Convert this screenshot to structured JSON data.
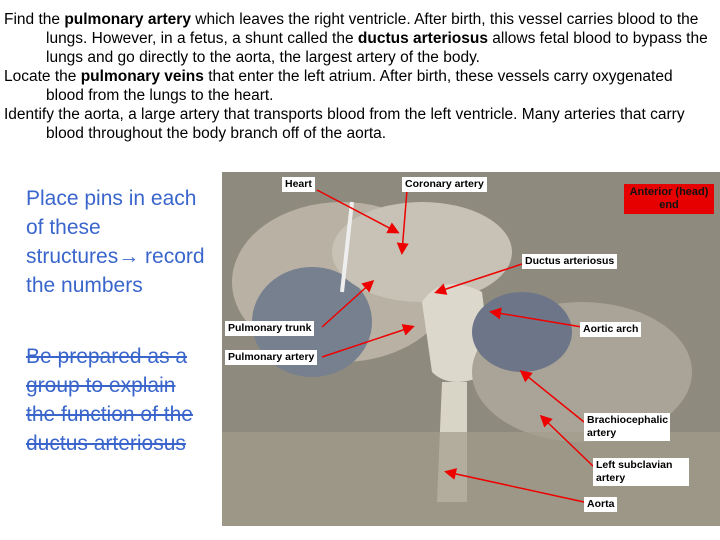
{
  "paragraphs": [
    {
      "runs": [
        {
          "text": "Find the ",
          "bold": false
        },
        {
          "text": "pulmonary artery",
          "bold": true
        },
        {
          "text": " which leaves the right ventricle. After birth, this vessel carries blood to the lungs. However, in a fetus, a shunt called the ",
          "bold": false
        },
        {
          "text": "ductus arteriosus",
          "bold": true
        },
        {
          "text": " allows fetal blood to bypass the lungs and go directly to the aorta, the largest artery of the body.",
          "bold": false
        }
      ]
    },
    {
      "runs": [
        {
          "text": "Locate the ",
          "bold": false
        },
        {
          "text": "pulmonary veins",
          "bold": true
        },
        {
          "text": " that enter the left atrium. After birth, these vessels carry oxygenated blood from the lungs to the heart.",
          "bold": false
        }
      ]
    },
    {
      "runs": [
        {
          "text": "Identify the aorta, a large artery that transports blood from the left ventricle. Many arteries that carry blood throughout the body branch off of the aorta.",
          "bold": false
        }
      ]
    }
  ],
  "instruction": "Place pins in each of these structures→ record the numbers",
  "struck_note": "Be prepared as a group to explain the function of the ductus arteriosus",
  "photo": {
    "heading": "Anterior (head) end",
    "labels": [
      "Heart",
      "Coronary artery",
      "Ductus arteriosus",
      "Pulmonary trunk",
      "Aortic arch",
      "Pulmonary artery",
      "Brachiocephalic artery",
      "Left subclavian artery",
      "Aorta"
    ]
  }
}
